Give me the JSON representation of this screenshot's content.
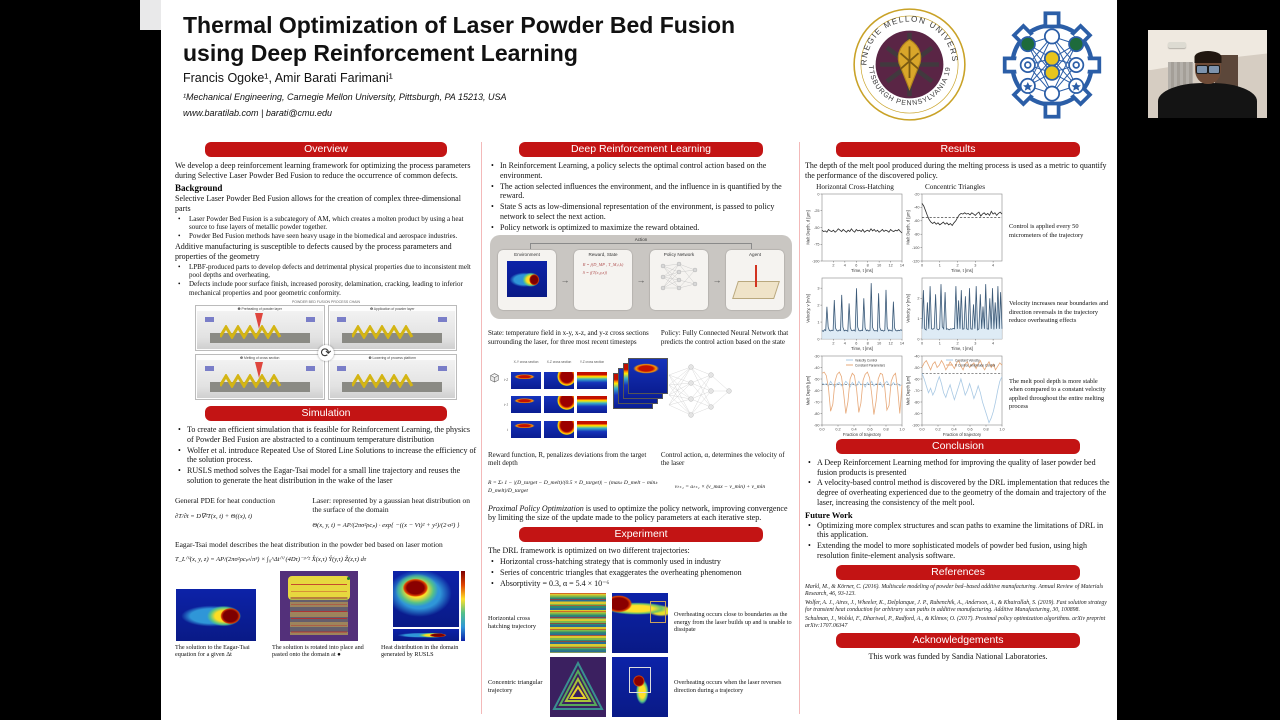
{
  "colors": {
    "accent_red": "#c31414",
    "frame_black": "#000000",
    "poster_bg": "#ffffff",
    "divider_pink": "#f3b9b9"
  },
  "header": {
    "title_line1": "Thermal Optimization of Laser Powder Bed Fusion",
    "title_line2": "using Deep Reinforcement Learning",
    "authors": "Francis Ogoke¹, Amir Barati Farimani¹",
    "affiliation": "¹Mechanical Engineering, Carnegie Mellon University, Pittsburgh, PA 15213, USA",
    "contact": "www.baratilab.com | barati@cmu.edu"
  },
  "logos": {
    "cmu_arc_top": "CARNEGIE MELLON UNIVERSITY",
    "cmu_arc_bottom": "PITTSBURGH PENNSYLVANIA 1900"
  },
  "overview": {
    "heading": "Overview",
    "intro": "We develop a deep reinforcement learning framework for optimizing the process parameters during Selective Laser Powder Bed Fusion to reduce the occurrence of common defects.",
    "background_heading": "Background",
    "para1": "Selective Laser Powder Bed Fusion allows for the creation of complex three-dimensional parts",
    "bullets1": [
      "Laser Powder Bed Fusion is a subcategory of AM, which creates a molten product by using a heat source to fuse layers of metallic powder together.",
      "Powder Bed Fusion methods have seen heavy usage in the biomedical and aerospace industries."
    ],
    "para2": "Additive manufacturing is susceptible to defects caused by the process parameters and properties of the geometry",
    "bullets2": [
      "LPBF-produced parts to develop defects and detrimental physical properties due to inconsistent melt pool depths and overheating,",
      "Defects include poor surface finish, increased porosity, delamination, cracking, leading to inferior mechanical properties and poor geometric conformity."
    ]
  },
  "process_figure": {
    "title": "POWDER BED FUSION PROCESS CHAIN",
    "panels": [
      "❶ Preheating of powder layer",
      "❷ Application of powder layer",
      "❸ Melting of cross section",
      "❹ Lowering of process platform"
    ]
  },
  "simulation": {
    "heading": "Simulation",
    "bullets": [
      "To create an efficient simulation that is feasible for Reinforcement Learning, the physics of Powder Bed Fusion are abstracted to a continuum temperature distribution",
      "Wolfer et al. introduce Repeated Use of Stored Line Solutions to increase the efficiency of the solution process.",
      "RUSLS method solves the Eagar-Tsai model for a small line trajectory and reuses the solution to generate the heat distribution in the wake of the laser"
    ],
    "pde_label": "General PDE for heat conduction",
    "pde_eq": "∂T/∂t = D∇²T(x, t) + Θ((x), t)",
    "laser_label": "Laser: represented by a gaussian heat distribution on the surface of the domain",
    "laser_eq": "Θ(x, y, t) = AP/(2πσ²ρcₚ) · exp{ −((x − Vt)² + y²)/(2·σ²) }",
    "eagar_label": "Eagar-Tsai model describes the heat distribution in the powder bed based on laser motion",
    "eagar_eq": "T_L⁽ⁱ⁾(x, y, z) = AP/(2πσ²ρcₚ√π³) × ∫₀^Δt⁽ⁱ⁾ (4Dτ)⁻³ᐟ² X̂(x,τ) Ŷ(y,τ) Ẑ(z,τ) dτ",
    "fig_captions": [
      "The solution to the Eagar-Tsai equation for a given Δt",
      "The solution is rotated into place and pasted onto the domain at ●",
      "Heat distribution in the domain generated by RUSLS"
    ]
  },
  "drl": {
    "heading": "Deep Reinforcement Learning",
    "bullets": [
      "In Reinforcement Learning, a policy selects the optimal control action based on the environment.",
      "The action selected influences the environment, and the influence in is quantified by the reward.",
      "State S acts as low-dimensional representation of the environment, is passed to policy network to select the next action.",
      "Policy network is optimized to maximize the reward obtained."
    ],
    "diagram": {
      "action": "Action",
      "boxes": [
        "Environment",
        "Reward, State",
        "Policy Network",
        "Agent"
      ],
      "eq1": "R = f(D_MP , T_M,t,k)",
      "eq2": "S = f(T(x,y,z))"
    },
    "state_caption": "State: temperature field in x-y, x-z, and y-z cross sections surrounding the laser, for three most recent timesteps",
    "policy_caption": "Policy: Fully Connected Neural Network that predicts the control action based on the state",
    "grid_cols": [
      "X-Y cross section",
      "X-Z cross section",
      "Y-Z cross section"
    ],
    "grid_rows": [
      "t-2",
      "t-1",
      "t"
    ],
    "reward_caption": "Reward function, R,  penalizes deviations from the target melt depth",
    "control_caption": "Control action, α, determines the velocity of the laser",
    "reward_eq": "R = Σₜ 1 − |(D_target − D_melt)/(0.5 × D_target)| − (maxₖ D_melt − minₖ D_melt)/D_target",
    "velocity_eq": "vₜ₊₁ = aₜ₊₁ × (v_max − v_min) + v_min",
    "ppo_italic": "Proximal Policy Optimization",
    "ppo_rest": " is used to optimize the policy network, improving convergence by limiting the size of the update made to the policy parameters at each iterative step."
  },
  "experiment": {
    "heading": "Experiment",
    "intro": "The DRL framework is optimized on two different trajectories:",
    "bullets": [
      "Horizontal cross-hatching strategy that is commonly used in industry",
      "Series of concentric triangles that exaggerates the overheating phenomenon",
      "Absorptivity = 0.3, α = 5.4 × 10⁻⁶"
    ],
    "rows": [
      {
        "label": "Horizontal cross hatching trajectory",
        "caption": "Overheating occurs close to boundaries as the energy from the laser builds up and is unable to dissipate"
      },
      {
        "label": "Concentric triangular trajectory",
        "caption": "Overheating occurs when the laser reverses direction during a trajectory"
      }
    ]
  },
  "results": {
    "heading": "Results",
    "intro": "The depth of the melt pool produced during the melting process is used as a metric to quantify the performance of the discovered policy.",
    "captions": [
      "Control is applied every 50 micrometers of the trajectory",
      "Velocity increases near boundaries and direction reversals in the trajectory reduce overheating effects",
      "The melt pool depth is more stable when compared to a constant velocity applied throughout the entire melting process"
    ]
  },
  "chart_data": [
    {
      "type": "line",
      "title": "Horizontal Cross-Hatching",
      "xlabel": "Time, t [ms]",
      "ylabel": "Melt Depth, d [μm]",
      "xlim": [
        0,
        14
      ],
      "ylim": [
        -100,
        0
      ],
      "yticks": [
        0,
        -25,
        -50,
        -75,
        -100
      ],
      "xticks": [
        2,
        4,
        6,
        8,
        10,
        12,
        14
      ],
      "series": [
        {
          "name": "melt depth",
          "color": "#2a2a2a",
          "values": [
            -54,
            -56,
            -55,
            -57,
            -53,
            -55,
            -56,
            -54,
            -57,
            -55,
            -52,
            -54,
            -56,
            -53,
            -55,
            -57,
            -54,
            -56,
            -52,
            -55,
            -57,
            -53,
            -55,
            -54,
            -56,
            -53,
            -57,
            -55,
            -54,
            -56,
            -52,
            -55,
            -53,
            -56,
            -54,
            -57,
            -55,
            -53,
            -56,
            -54,
            -55,
            -57,
            -53,
            -55,
            -56,
            -54,
            -55,
            -53,
            -56,
            -58
          ]
        }
      ]
    },
    {
      "type": "line",
      "title": "Concentric Triangles",
      "xlabel": "Time, t [ms]",
      "ylabel": "Melt Depth, d [μm]",
      "xlim": [
        0,
        4.5
      ],
      "ylim": [
        -120,
        -20
      ],
      "yticks": [
        -20,
        -40,
        -60,
        -80,
        -100,
        -120
      ],
      "xticks": [
        0,
        1,
        2,
        3,
        4
      ],
      "target": -55,
      "series": [
        {
          "name": "melt depth",
          "color": "#2a2a2a",
          "values": [
            -34,
            -38,
            -45,
            -52,
            -58,
            -62,
            -64,
            -62,
            -65,
            -63,
            -66,
            -64,
            -62,
            -65,
            -63,
            -66,
            -64,
            -67,
            -63,
            -60,
            -55,
            -51,
            -49,
            -50,
            -48,
            -50,
            -49,
            -51,
            -48,
            -50,
            -52,
            -49,
            -47,
            -53,
            -50,
            -48,
            -51,
            -49,
            -52,
            -46,
            -50,
            -48,
            -52,
            -49,
            -47,
            -50
          ]
        }
      ]
    },
    {
      "type": "line",
      "title": "",
      "xlabel": "Time, t [ms]",
      "ylabel": "Velocity, v [m/s]",
      "xlim": [
        0,
        14
      ],
      "ylim": [
        0,
        3.6
      ],
      "yticks": [
        0,
        1,
        2,
        3
      ],
      "xticks": [
        2,
        4,
        6,
        8,
        10,
        12,
        14
      ],
      "series": [
        {
          "name": "velocity",
          "color": "#3c5a78",
          "fill": "#d6e6f2",
          "values": [
            0.5,
            0.45,
            0.55,
            0.5,
            1.9,
            0.7,
            0.5,
            0.48,
            0.52,
            0.5,
            2.3,
            0.65,
            0.5,
            0.47,
            0.53,
            0.5,
            2.6,
            0.7,
            0.48,
            0.52,
            0.5,
            0.46,
            2.1,
            0.68,
            0.5,
            0.49,
            0.54,
            0.47,
            3.0,
            0.7,
            0.5,
            0.48,
            0.52,
            0.5,
            2.4,
            0.66,
            0.49,
            0.53,
            0.47,
            0.5,
            3.3,
            0.7,
            0.52,
            0.48,
            0.5,
            0.46,
            2.7,
            0.68,
            0.5,
            0.52,
            0.47,
            0.5,
            2.9,
            0.7,
            0.48,
            0.53,
            0.5,
            0.47,
            2.2,
            0.65,
            0.5,
            0.48,
            0.52,
            0.49,
            0.55,
            0.5
          ]
        }
      ]
    },
    {
      "type": "line",
      "title": "",
      "xlabel": "Time, t [ms]",
      "ylabel": "Velocity, v [m/s]",
      "xlim": [
        0,
        4.5
      ],
      "ylim": [
        0,
        3.0
      ],
      "yticks": [
        0,
        1,
        2
      ],
      "xticks": [
        0,
        1,
        2,
        3,
        4
      ],
      "series": [
        {
          "name": "velocity",
          "color": "#3c5a78",
          "fill": "#d6e6f2",
          "values": [
            0.5,
            2.4,
            0.5,
            0.45,
            1.8,
            0.5,
            2.6,
            0.5,
            0.48,
            0.52,
            2.2,
            0.5,
            0.45,
            0.5,
            2.7,
            0.6,
            0.5,
            2.3,
            0.48,
            0.5,
            0.45,
            0.5,
            0.48,
            0.52,
            0.5,
            2.6,
            0.5,
            1.9,
            0.5,
            2.4,
            0.48,
            0.5,
            2.1,
            0.5,
            0.46,
            2.5,
            0.5,
            0.48,
            1.7,
            0.5,
            2.6,
            0.45,
            0.5,
            2.2,
            0.5,
            1.6,
            0.5,
            2.7,
            0.5,
            0.48,
            2.0,
            0.5,
            2.5,
            0.47,
            1.8,
            0.5,
            2.6,
            0.5,
            2.3,
            0.5
          ]
        }
      ]
    },
    {
      "type": "line",
      "title": "",
      "xlabel": "Fraction of trajectory",
      "ylabel": "Melt Depth [μm]",
      "legend": true,
      "xlim": [
        0,
        1
      ],
      "ylim": [
        -90,
        -30
      ],
      "yticks": [
        -30,
        -40,
        -50,
        -60,
        -70,
        -80,
        -90
      ],
      "xticks": [
        "0.0",
        "0.2",
        "0.4",
        "0.6",
        "0.8",
        "1.0"
      ],
      "target": -55,
      "series": [
        {
          "name": "Velocity Control",
          "color": "#a9c9e4",
          "values": [
            -53,
            -55,
            -54,
            -56,
            -52,
            -55,
            -57,
            -54,
            -53,
            -56,
            -55,
            -52,
            -54,
            -57,
            -53,
            -55,
            -56,
            -52,
            -55,
            -54,
            -57,
            -53,
            -55,
            -52,
            -56,
            -54,
            -55,
            -53,
            -57,
            -54,
            -52,
            -55,
            -56,
            -53,
            -55,
            -54,
            -56,
            -55
          ]
        },
        {
          "name": "Constant Parameters",
          "color": "#e7a878",
          "values": [
            -45,
            -44,
            -47,
            -58,
            -78,
            -72,
            -52,
            -46,
            -44,
            -48,
            -62,
            -80,
            -70,
            -50,
            -45,
            -47,
            -59,
            -79,
            -71,
            -51,
            -46,
            -44,
            -49,
            -63,
            -81,
            -69,
            -50,
            -45,
            -46,
            -57,
            -77,
            -73,
            -52,
            -47,
            -45,
            -59,
            -80,
            -55
          ]
        }
      ]
    },
    {
      "type": "line",
      "title": "",
      "xlabel": "Fraction of trajectory",
      "ylabel": "Melt Depth [μm]",
      "legend": true,
      "xlim": [
        0,
        1
      ],
      "ylim": [
        -100,
        -40
      ],
      "yticks": [
        -40,
        -50,
        -60,
        -70,
        -80,
        -90,
        -100
      ],
      "xticks": [
        "0.0",
        "0.2",
        "0.4",
        "0.6",
        "0.8",
        "1.0"
      ],
      "target": -55,
      "series": [
        {
          "name": "Constant Velocity",
          "color": "#a9c9e4",
          "values": [
            -55,
            -60,
            -66,
            -72,
            -68,
            -74,
            -70,
            -63,
            -58,
            -64,
            -72,
            -76,
            -70,
            -65,
            -72,
            -78,
            -72,
            -66,
            -60,
            -67,
            -74,
            -70,
            -64,
            -70,
            -77,
            -72,
            -66,
            -72,
            -80,
            -86,
            -92,
            -98,
            -94,
            -88,
            -80,
            -70,
            -62,
            -58
          ]
        },
        {
          "name": "V Control, Amplitude Control",
          "color": "#e7a878",
          "values": [
            -50,
            -46,
            -44,
            -48,
            -52,
            -47,
            -45,
            -50,
            -48,
            -44,
            -47,
            -52,
            -49,
            -45,
            -48,
            -51,
            -46,
            -44,
            -49,
            -52,
            -47,
            -45,
            -50,
            -48,
            -46,
            -51,
            -47,
            -44,
            -49,
            -52,
            -48,
            -45,
            -50,
            -47,
            -52,
            -49,
            -46,
            -48
          ]
        }
      ]
    }
  ],
  "conclusion": {
    "heading": "Conclusion",
    "bullets": [
      "A Deep Reinforcement Learning method for improving the quality of laser powder bed fusion products is presented",
      "A velocity-based control method is discovered by the DRL implementation that reduces the degree of overheating experienced due to the geometry of the domain and trajectory of the laser, increasing the consistency of the melt pool."
    ],
    "future_heading": "Future Work",
    "future_bullets": [
      "Optimizing more complex structures and scan paths to examine the limitations of DRL in this application.",
      "Extending the model to more sophisticated models of powder bed fusion, using high resolution finite-element analysis software."
    ]
  },
  "references": {
    "heading": "References",
    "items": [
      "Markl, M., & Körner, C. (2016). Multiscale modeling of powder bed–based additive manufacturing. Annual Review of Materials Research, 46, 93-123.",
      "Wolfer, A. J., Aires, J., Wheeler, K., Delplanque, J. P., Rubenchik, A., Anderson, A., & Khairallah, S. (2019). Fast solution strategy for transient heat conduction for arbitrary scan paths in additive manufacturing. Additive Manufacturing, 30, 100898.",
      "Schulman, J., Wolski, F., Dhariwal, P., Radford, A., & Klimov, O. (2017). Proximal policy optimization algorithms. arXiv preprint arXiv:1707.06347"
    ]
  },
  "acknowledgements": {
    "heading": "Acknowledgements",
    "text": "This work was funded by Sandia National Laboratories."
  }
}
